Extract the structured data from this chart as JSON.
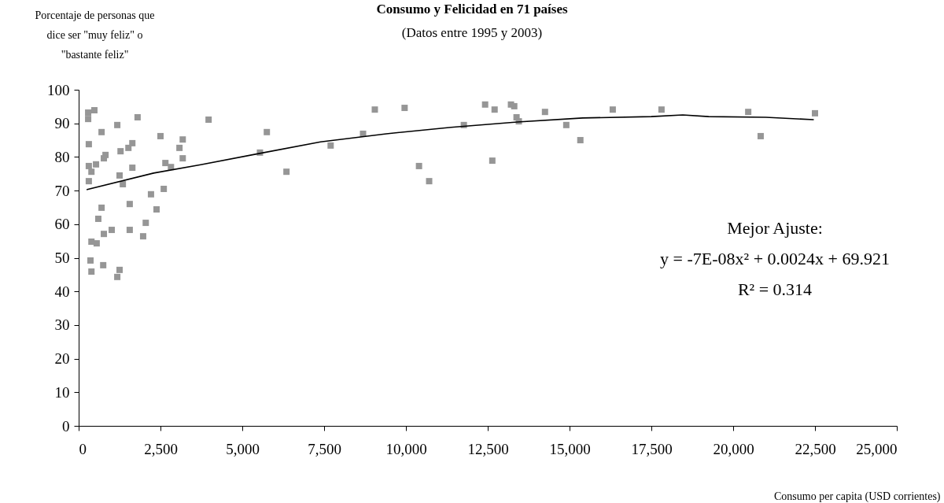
{
  "chart_data": {
    "type": "scatter",
    "title": "Consumo y Felicidad en 71 países",
    "subtitle": "(Datos entre 1995 y 2003)",
    "ylabel": "Porcentaje de personas que dice ser \"muy feliz\" o \"bastante feliz\"",
    "xlabel": "Consumo per capita (USD corrientes)",
    "annotations": [
      "Mejor Ajuste:",
      "y = -7E-08x² + 0.0024x + 69.921",
      "R² = 0.314"
    ],
    "xlim": [
      0,
      25000
    ],
    "xticks": [
      0,
      {
        "value": 2500,
        "label": "2,500"
      },
      {
        "value": 5000,
        "label": "5,000"
      },
      {
        "value": 7500,
        "label": "7,500"
      },
      {
        "value": 10000,
        "label": "10,000"
      },
      {
        "value": 12500,
        "label": "12,500"
      },
      {
        "value": 15000,
        "label": "15,000"
      },
      {
        "value": 17500,
        "label": "17,500"
      },
      {
        "value": 20000,
        "label": "20,000"
      },
      {
        "value": 22500,
        "label": "22,500"
      },
      {
        "value": 25000,
        "label": "25,000"
      }
    ],
    "ylim": [
      0,
      100
    ],
    "yticks": [
      0,
      10,
      20,
      30,
      40,
      50,
      60,
      70,
      80,
      90,
      100
    ],
    "series": [
      {
        "color": "#969696",
        "marker": "square",
        "x": [
          480,
          290,
          290,
          1800,
          1180,
          700,
          2500,
          3180,
          310,
          1640,
          1520,
          1280,
          3080,
          820,
          770,
          3180,
          310,
          530,
          2650,
          2820,
          1640,
          390,
          1250,
          310,
          1350,
          2600,
          2210,
          700,
          1560,
          2380,
          600,
          2050,
          1010,
          770,
          1560,
          1970,
          390,
          550,
          360,
          750,
          390,
          1250,
          1180,
          3970,
          5750,
          5540,
          6350,
          7700,
          8690,
          9050,
          9960,
          10400,
          10710,
          11770,
          12420,
          12710,
          12640,
          13210,
          13310,
          13380,
          13450,
          14250,
          14900,
          15330,
          16320,
          17810,
          20460,
          20840,
          22500
        ],
        "values": [
          93.9,
          93.2,
          91.3,
          91.8,
          89.5,
          87.4,
          86.2,
          85.2,
          83.8,
          84.1,
          82.7,
          81.7,
          82.7,
          80.6,
          79.6,
          79.6,
          77.3,
          77.8,
          78.2,
          77.0,
          76.8,
          75.6,
          74.5,
          72.8,
          71.9,
          70.5,
          68.9,
          64.9,
          66.0,
          64.4,
          61.6,
          60.4,
          58.3,
          57.1,
          58.3,
          56.4,
          54.8,
          54.3,
          49.2,
          47.8,
          45.9,
          46.4,
          44.3,
          91.1,
          87.4,
          81.3,
          75.6,
          83.4,
          86.9,
          94.1,
          94.6,
          77.3,
          72.8,
          89.5,
          95.6,
          94.1,
          78.9,
          95.6,
          95.1,
          91.8,
          90.6,
          93.4,
          89.5,
          85.0,
          94.1,
          94.1,
          93.4,
          86.2,
          93.0
        ]
      },
      {
        "type": "line",
        "color": "#000000",
        "marker": "none",
        "x": [
          260,
          2290,
          3730,
          5500,
          7390,
          9400,
          11380,
          13400,
          15400,
          17500,
          18460,
          19250,
          21000,
          22450
        ],
        "values": [
          70.3,
          75.2,
          77.7,
          81.0,
          84.5,
          86.9,
          88.8,
          90.4,
          91.6,
          92.0,
          92.5,
          92.0,
          91.8,
          91.1
        ]
      }
    ]
  }
}
